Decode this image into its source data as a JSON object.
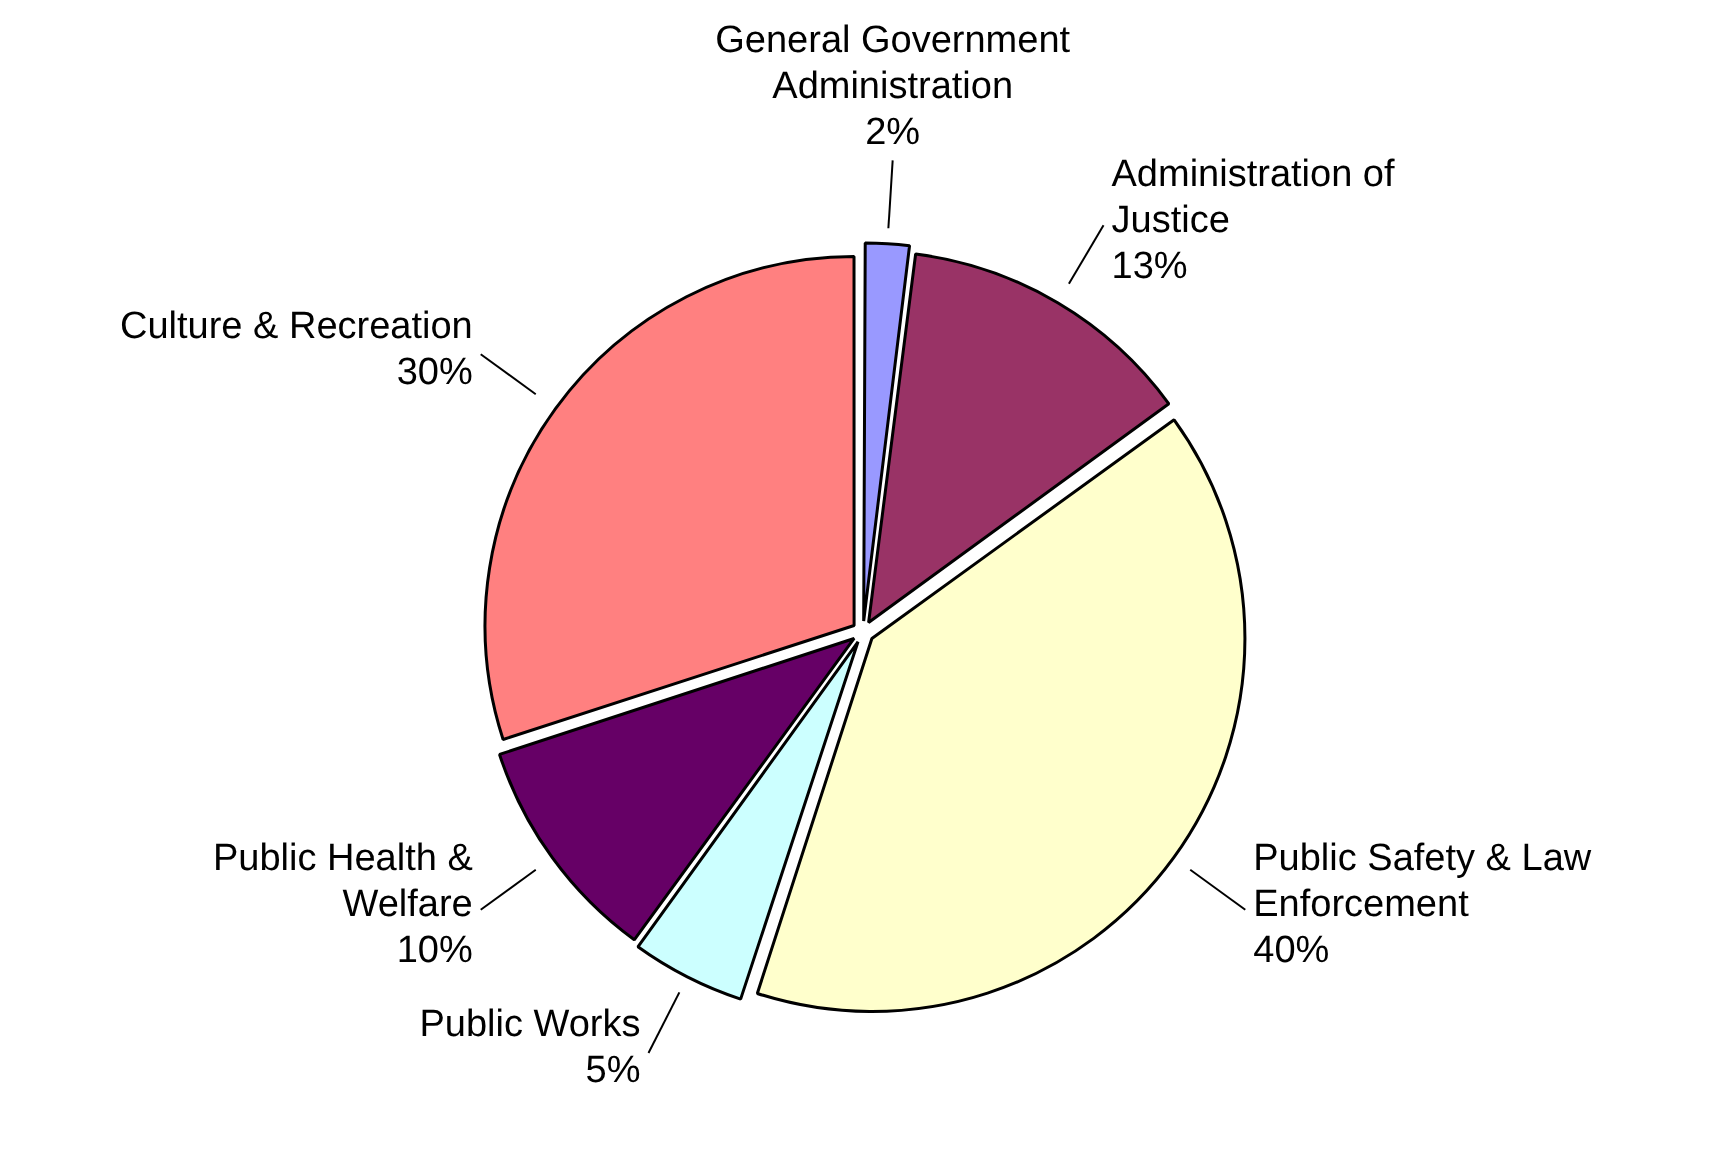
{
  "chart_data": {
    "type": "pie",
    "categories": [
      "General Government Administration",
      "Administration of Justice",
      "Public Safety & Law Enforcement",
      "Public Works",
      "Public Health & Welfare",
      "Culture & Recreation"
    ],
    "values": [
      2,
      13,
      40,
      5,
      10,
      30
    ],
    "value_labels": [
      "2%",
      "13%",
      "40%",
      "5%",
      "10%",
      "30%"
    ],
    "colors": [
      "#9999ff",
      "#993366",
      "#ffffcc",
      "#ccffff",
      "#660066",
      "#ff8080"
    ],
    "legend": false
  }
}
